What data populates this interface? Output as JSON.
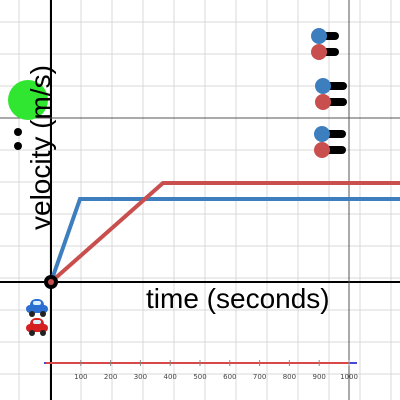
{
  "axes": {
    "ylabel": "velocity (m/s)",
    "xlabel": "time (seconds)"
  },
  "colors": {
    "blue": "#3d7ebf",
    "red": "#c94f4f",
    "green": "#31e631",
    "grid": "#d9d9d9",
    "axis": "#000000",
    "timeline": "#4848d8"
  },
  "icons": {
    "blue_car": "car-icon",
    "red_car": "car-icon",
    "green_point": "circle-icon",
    "origin": "circle-icon",
    "sliders": "toggle-slider-icon"
  },
  "graph_lines": [
    {
      "name": "blue",
      "start_value": 0.5,
      "plateau_value": 0.5,
      "ramp_end_fraction": 0.22
    },
    {
      "name": "red",
      "start_value": 0.6,
      "plateau_value": 0.6,
      "ramp_end_fraction": 0.33
    }
  ],
  "timeline": {
    "ticks": [
      "100",
      "200",
      "300",
      "400",
      "500",
      "600",
      "700",
      "800",
      "900",
      "1000"
    ]
  },
  "sliders": [
    {
      "group": 1,
      "color": "blue"
    },
    {
      "group": 1,
      "color": "red"
    },
    {
      "group": 2,
      "color": "blue"
    },
    {
      "group": 2,
      "color": "red"
    },
    {
      "group": 3,
      "color": "blue"
    },
    {
      "group": 3,
      "color": "red"
    }
  ]
}
